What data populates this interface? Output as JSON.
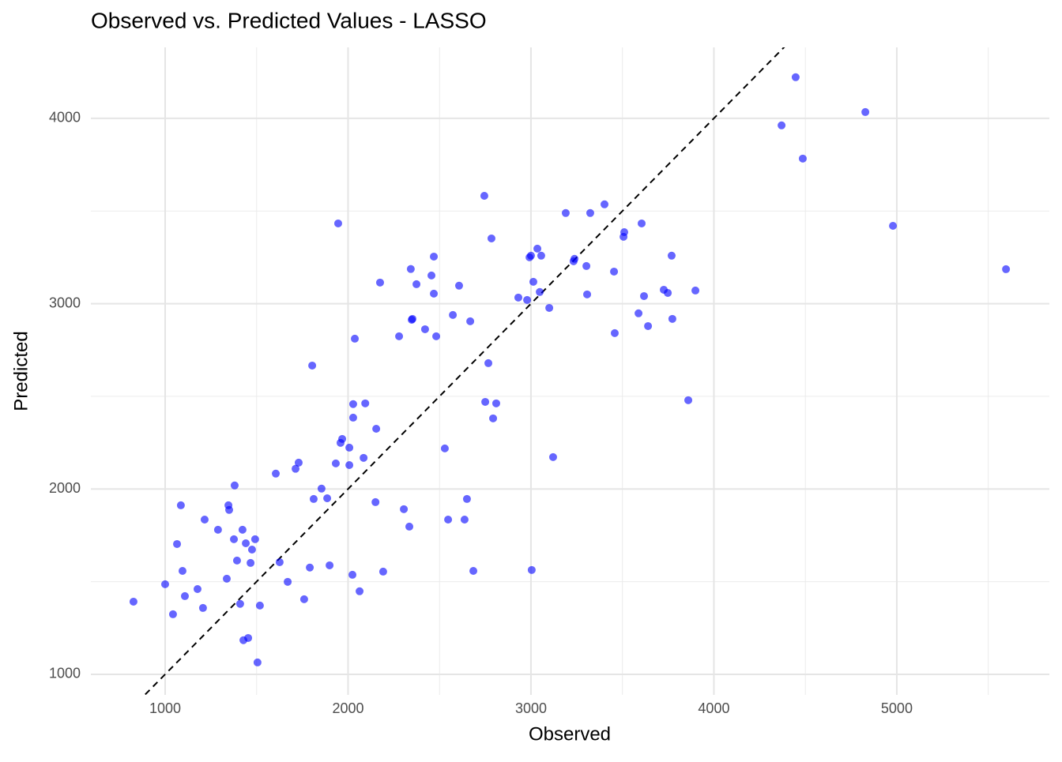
{
  "chart_data": {
    "type": "scatter",
    "title": "Observed vs. Predicted Values - LASSO",
    "x_label": "Observed",
    "y_label": "Predicted",
    "x": [
      827,
      1000,
      1043,
      1065,
      1086,
      1095,
      1108,
      1177,
      1207,
      1216,
      1289,
      1337,
      1346,
      1350,
      1380,
      1376,
      1393,
      1410,
      1423,
      1428,
      1441,
      1454,
      1467,
      1475,
      1492,
      1505,
      1518,
      1605,
      1626,
      1670,
      1713,
      1730,
      1760,
      1791,
      1804,
      1812,
      1855,
      1886,
      1899,
      1933,
      1946,
      1959,
      1968,
      2007,
      2007,
      2024,
      2028,
      2028,
      2037,
      2063,
      2085,
      2094,
      2150,
      2154,
      2175,
      2192,
      2279,
      2305,
      2335,
      2343,
      2348,
      2352,
      2374,
      2421,
      2456,
      2469,
      2469,
      2482,
      2529,
      2547,
      2573,
      2607,
      2637,
      2650,
      2668,
      2685,
      2745,
      2750,
      2767,
      2784,
      2793,
      2810,
      2931,
      2979,
      2992,
      3000,
      3004,
      3013,
      3035,
      3048,
      3056,
      3100,
      3121,
      3190,
      3233,
      3238,
      3303,
      3307,
      3324,
      3402,
      3454,
      3458,
      3506,
      3510,
      3588,
      3605,
      3618,
      3640,
      3726,
      3748,
      3769,
      3773,
      3860,
      3899,
      4370,
      4447,
      4486,
      4828,
      4979,
      5597
    ],
    "values": [
      1392,
      1486,
      1324,
      1703,
      1912,
      1558,
      1422,
      1460,
      1358,
      1835,
      1780,
      1516,
      1912,
      1887,
      2019,
      1729,
      1614,
      1380,
      1780,
      1184,
      1707,
      1196,
      1601,
      1673,
      1729,
      1064,
      1371,
      2083,
      1605,
      1499,
      2109,
      2142,
      1405,
      1576,
      2666,
      1946,
      2002,
      1950,
      1588,
      2138,
      3433,
      2249,
      2270,
      2129,
      2223,
      1537,
      2385,
      2458,
      2811,
      1448,
      2168,
      2462,
      1929,
      2325,
      3114,
      1554,
      2824,
      1891,
      1797,
      3187,
      2913,
      2918,
      3105,
      2862,
      3152,
      3254,
      3054,
      2824,
      2219,
      1835,
      2939,
      3097,
      1835,
      1946,
      2905,
      1558,
      3582,
      2470,
      2679,
      3352,
      2381,
      2462,
      3033,
      3020,
      3250,
      3259,
      1563,
      3118,
      3297,
      3063,
      3259,
      2977,
      2172,
      3489,
      3229,
      3242,
      3203,
      3050,
      3489,
      3536,
      3173,
      2841,
      3361,
      3386,
      2948,
      3433,
      3041,
      2879,
      3075,
      3058,
      3259,
      2918,
      2479,
      3071,
      3962,
      4222,
      3783,
      4034,
      3420,
      3186
    ],
    "color": "#0000ff",
    "xlim": [
      594,
      5834
    ],
    "ylim": [
      889,
      4383
    ],
    "xticks": [
      1000,
      2000,
      3000,
      4000,
      5000
    ],
    "yticks": [
      1000,
      2000,
      3000,
      4000
    ],
    "x_minor_grid": [
      1500,
      2500,
      3500,
      4500,
      5500
    ],
    "y_minor_grid": [
      1500,
      2500,
      3500
    ],
    "grid": true,
    "reference_line": {
      "slope": 1,
      "intercept": 0
    }
  }
}
